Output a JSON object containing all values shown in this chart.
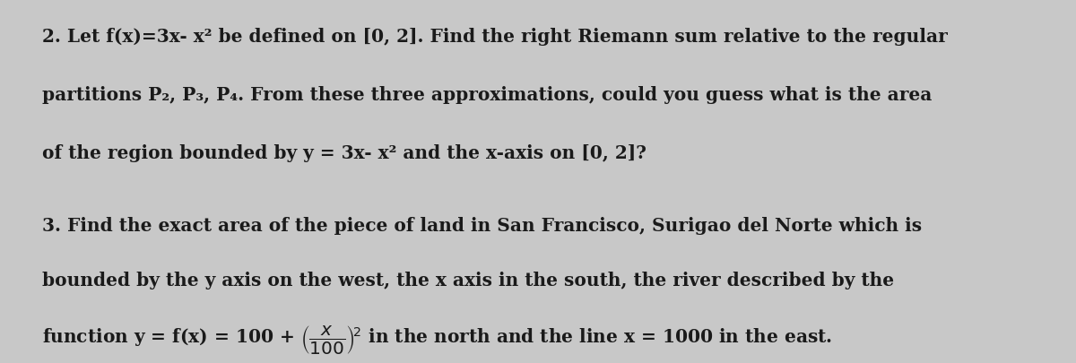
{
  "background_color": "#c8c8c8",
  "text_color": "#1a1a1a",
  "figsize": [
    12.0,
    4.06
  ],
  "dpi": 100,
  "line1_q2": "2. Let f(x)=3x- x² be defined on [0, 2]. Find the right Riemann sum relative to the regular",
  "line2_q2": "partitions P₂, P₃, P₄. From these three approximations, could you guess what is the area",
  "line3_q2": "of the region bounded by y = 3x- x² and the x-axis on [0, 2]?",
  "line1_q3": "3. Find the exact area of the piece of land in San Francisco, Surigao del Norte which is",
  "line2_q3": "bounded by the y axis on the west, the x axis in the south, the river described by the",
  "line3a_q3": "function y = f(x) = 100 + ",
  "line3b_q3": "(⁺¹/₀₀)²",
  "line3c_q3": " in the north and the line x = 1000 in the east.",
  "font_size": 14.5,
  "font_family": "serif"
}
